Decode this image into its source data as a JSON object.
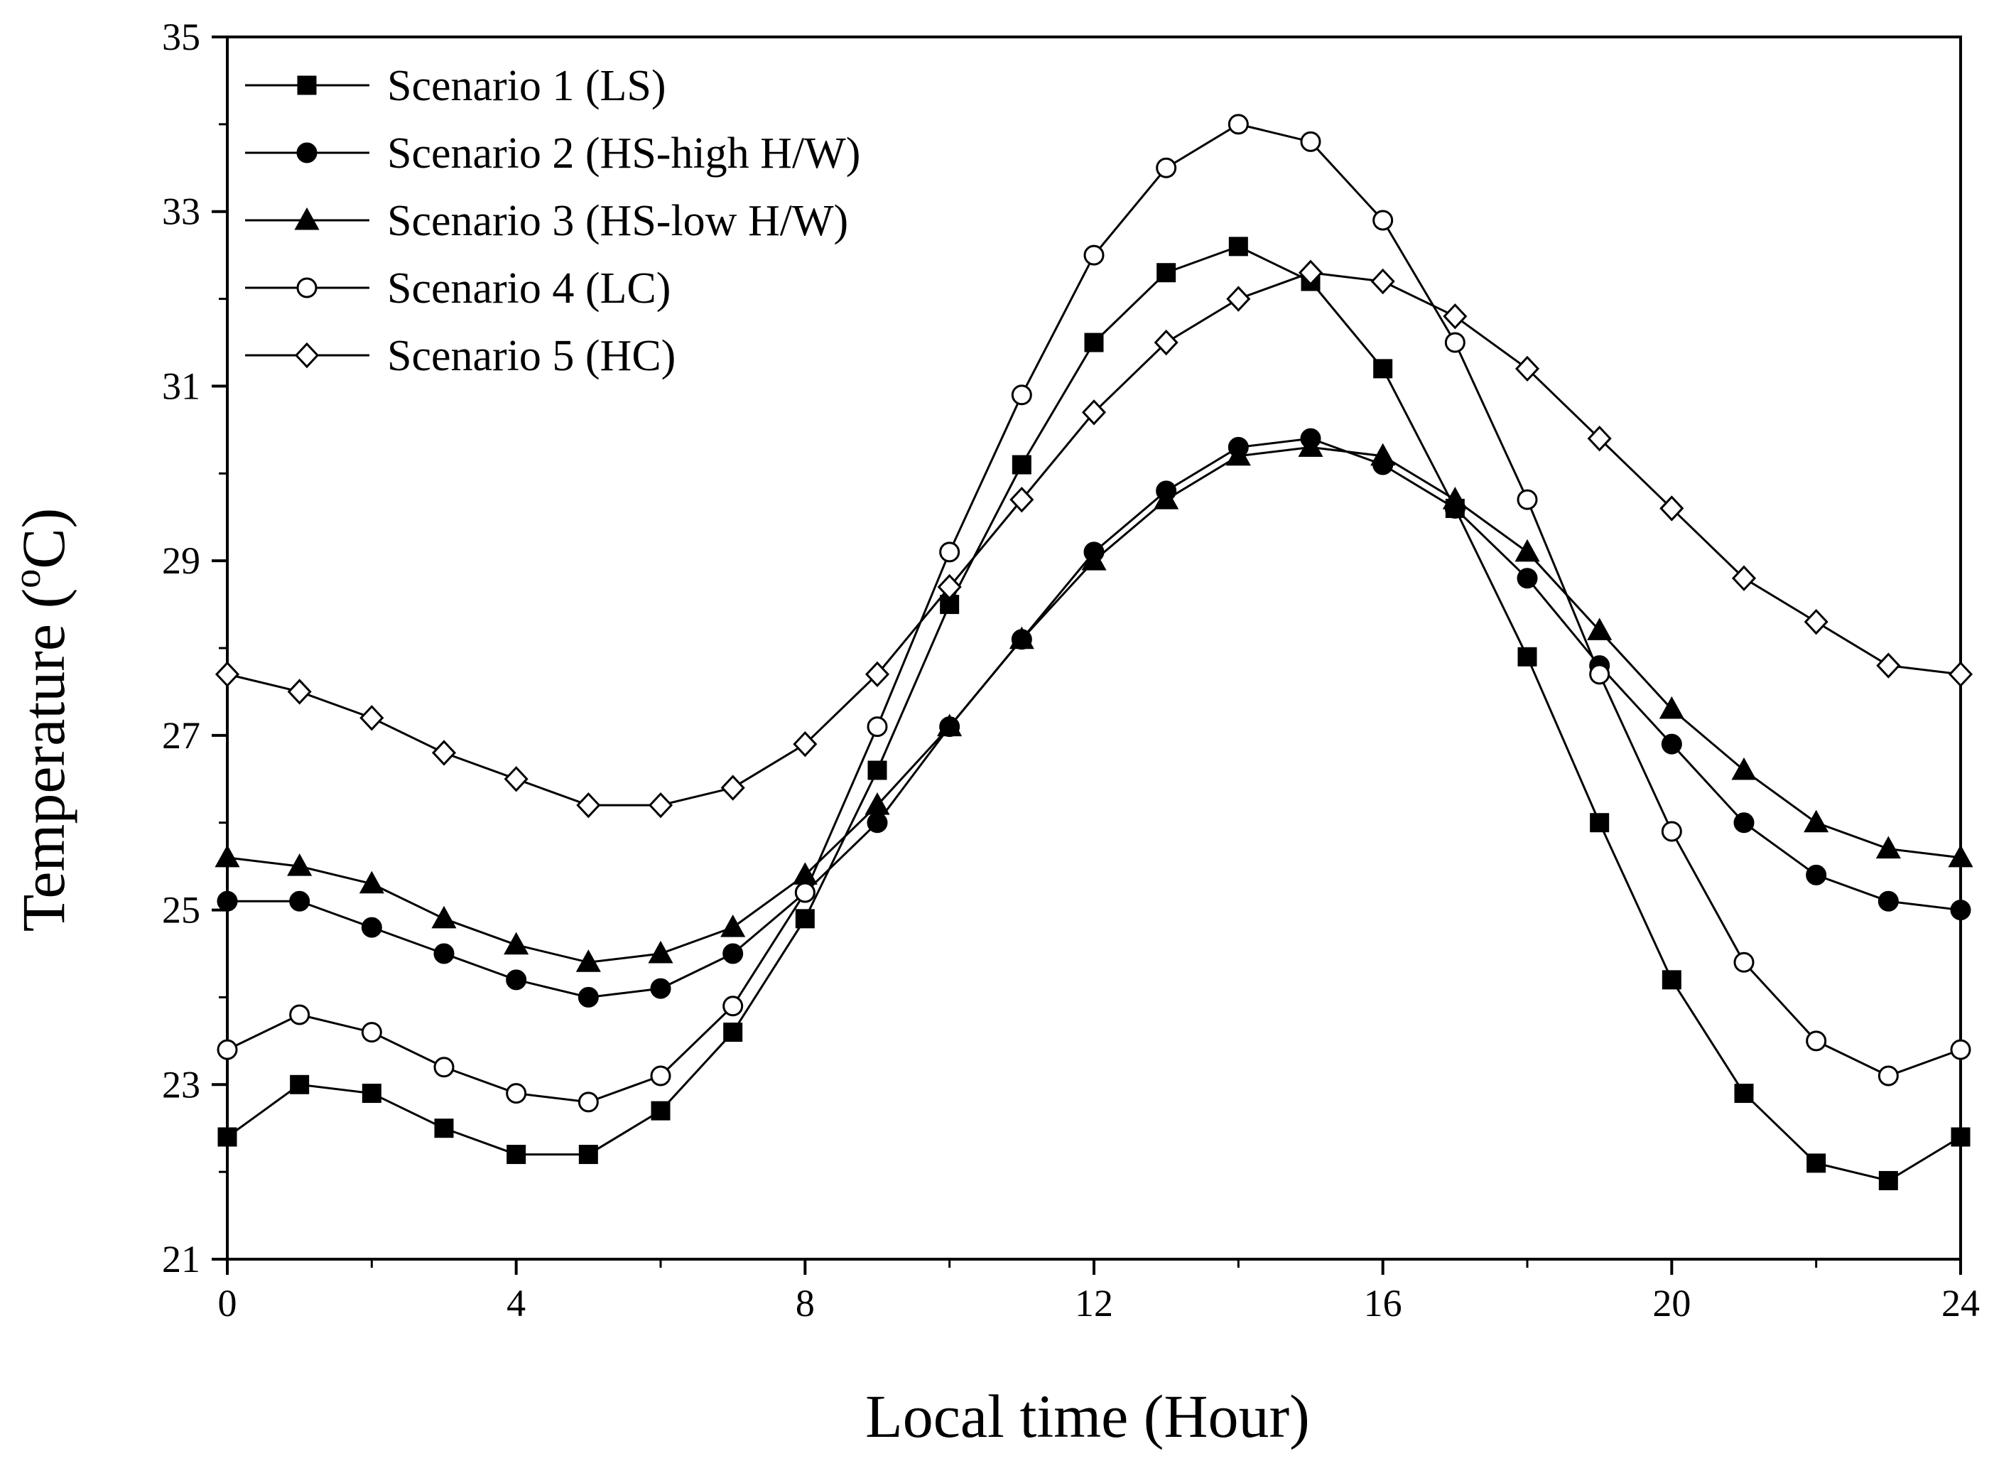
{
  "chart_data": {
    "type": "line",
    "title": "",
    "xlabel": "Local time (Hour)",
    "ylabel_main": "Temperature (",
    "ylabel_sup": "o",
    "ylabel_end": "C)",
    "xlim": [
      0,
      24
    ],
    "ylim": [
      21,
      35
    ],
    "xticks": [
      0,
      4,
      8,
      12,
      16,
      20,
      24
    ],
    "yticks": [
      21,
      23,
      25,
      27,
      29,
      31,
      33,
      35
    ],
    "grid": false,
    "legend_position": "top-left",
    "x": [
      0,
      1,
      2,
      3,
      4,
      5,
      6,
      7,
      8,
      9,
      10,
      11,
      12,
      13,
      14,
      15,
      16,
      17,
      18,
      19,
      20,
      21,
      22,
      23,
      24
    ],
    "series": [
      {
        "name": "Scenario 1 (LS)",
        "marker": "square-filled",
        "values": [
          22.4,
          23.0,
          22.9,
          22.5,
          22.2,
          22.2,
          22.7,
          23.6,
          24.9,
          26.6,
          28.5,
          30.1,
          31.5,
          32.3,
          32.6,
          32.2,
          31.2,
          29.6,
          27.9,
          26.0,
          24.2,
          22.9,
          22.1,
          21.9,
          22.4
        ]
      },
      {
        "name": "Scenario 2 (HS-high H/W)",
        "marker": "circle-filled",
        "values": [
          25.1,
          25.1,
          24.8,
          24.5,
          24.2,
          24.0,
          24.1,
          24.5,
          25.2,
          26.0,
          27.1,
          28.1,
          29.1,
          29.8,
          30.3,
          30.4,
          30.1,
          29.6,
          28.8,
          27.8,
          26.9,
          26.0,
          25.4,
          25.1,
          25.0
        ]
      },
      {
        "name": "Scenario 3 (HS-low H/W)",
        "marker": "triangle-filled",
        "values": [
          25.6,
          25.5,
          25.3,
          24.9,
          24.6,
          24.4,
          24.5,
          24.8,
          25.4,
          26.2,
          27.1,
          28.1,
          29.0,
          29.7,
          30.2,
          30.3,
          30.2,
          29.7,
          29.1,
          28.2,
          27.3,
          26.6,
          26.0,
          25.7,
          25.6
        ]
      },
      {
        "name": "Scenario 4 (LC)",
        "marker": "circle-open",
        "values": [
          23.4,
          23.8,
          23.6,
          23.2,
          22.9,
          22.8,
          23.1,
          23.9,
          25.2,
          27.1,
          29.1,
          30.9,
          32.5,
          33.5,
          34.0,
          33.8,
          32.9,
          31.5,
          29.7,
          27.7,
          25.9,
          24.4,
          23.5,
          23.1,
          23.4
        ]
      },
      {
        "name": "Scenario 5 (HC)",
        "marker": "diamond-open",
        "values": [
          27.7,
          27.5,
          27.2,
          26.8,
          26.5,
          26.2,
          26.2,
          26.4,
          26.9,
          27.7,
          28.7,
          29.7,
          30.7,
          31.5,
          32.0,
          32.3,
          32.2,
          31.8,
          31.2,
          30.4,
          29.6,
          28.8,
          28.3,
          27.8,
          27.7
        ]
      }
    ]
  }
}
